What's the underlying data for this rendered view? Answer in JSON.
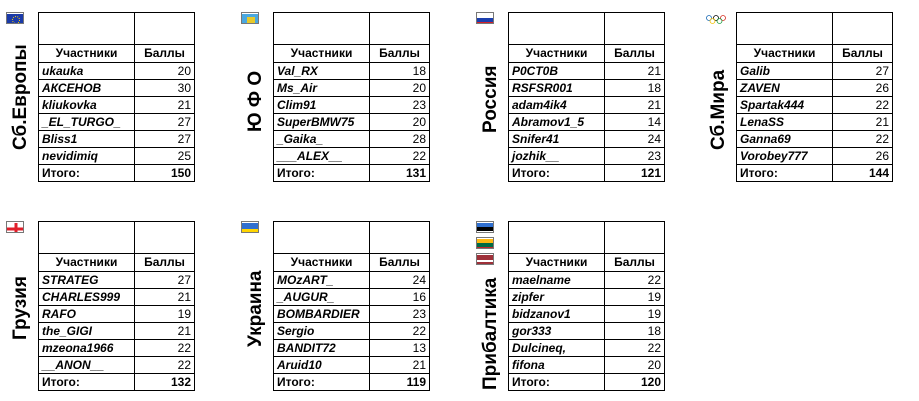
{
  "blocks": [
    {
      "label": "Сб.Европы",
      "flag": "eu-flag-icon",
      "head": {
        "name": "Участники",
        "score": "Баллы"
      },
      "rows": [
        {
          "name": "ukauka",
          "score": "20"
        },
        {
          "name": "АКСЕНОВ",
          "score": "30"
        },
        {
          "name": "kliukovka",
          "score": "21"
        },
        {
          "name": "_EL_TURGO_",
          "score": "27"
        },
        {
          "name": "Bliss1",
          "score": "27"
        },
        {
          "name": "nevidimiq",
          "score": "25"
        }
      ],
      "total": {
        "label": "Итого:",
        "score": "150"
      }
    },
    {
      "label": "Ю Ф О",
      "flag": "yufo-flag-icon",
      "head": {
        "name": "Участники",
        "score": "Баллы"
      },
      "rows": [
        {
          "name": "Val_RX",
          "score": "18"
        },
        {
          "name": "Ms_Air",
          "score": "20"
        },
        {
          "name": "Clim91",
          "score": "23"
        },
        {
          "name": "SuperBMW75",
          "score": "20"
        },
        {
          "name": "_Gaika_",
          "score": "28"
        },
        {
          "name": "___ALEX__",
          "score": "22"
        }
      ],
      "total": {
        "label": "Итого:",
        "score": "131"
      }
    },
    {
      "label": "Россия",
      "flag": "russia-flag-icon",
      "head": {
        "name": "Участники",
        "score": "Баллы"
      },
      "rows": [
        {
          "name": "P0CT0B",
          "score": "21"
        },
        {
          "name": "RSFSR001",
          "score": "18"
        },
        {
          "name": "adam4ik4",
          "score": "21"
        },
        {
          "name": "Abramov1_5",
          "score": "14"
        },
        {
          "name": "Snifer41",
          "score": "24"
        },
        {
          "name": "jozhik__",
          "score": "23"
        }
      ],
      "total": {
        "label": "Итого:",
        "score": "121"
      }
    },
    {
      "label": "Сб.Мира",
      "flag": "olympic-flag-icon",
      "head": {
        "name": "Участники",
        "score": "Баллы"
      },
      "rows": [
        {
          "name": "Galib",
          "score": "27"
        },
        {
          "name": "ZAVEN",
          "score": "26"
        },
        {
          "name": "Spartak444",
          "score": "22"
        },
        {
          "name": "LenaSS",
          "score": "21"
        },
        {
          "name": "Ganna69",
          "score": "22"
        },
        {
          "name": "Vorobey777",
          "score": "26"
        }
      ],
      "total": {
        "label": "Итого:",
        "score": "144"
      }
    },
    {
      "label": "Грузия",
      "flag": "georgia-flag-icon",
      "head": {
        "name": "Участники",
        "score": "Баллы"
      },
      "rows": [
        {
          "name": "STRATEG",
          "score": "27"
        },
        {
          "name": "CHARLES999",
          "score": "21"
        },
        {
          "name": "RAFO",
          "score": "19"
        },
        {
          "name": "the_GIGI",
          "score": "21"
        },
        {
          "name": "mzeona1966",
          "score": "22"
        },
        {
          "name": "__ANON__",
          "score": "22"
        }
      ],
      "total": {
        "label": "Итого:",
        "score": "132"
      }
    },
    {
      "label": "Украина",
      "flag": "ukraine-flag-icon",
      "head": {
        "name": "Участники",
        "score": "Баллы"
      },
      "rows": [
        {
          "name": "MOzART_",
          "score": "24"
        },
        {
          "name": "_AUGUR_",
          "score": "16"
        },
        {
          "name": "BOMBARDIER",
          "score": "23"
        },
        {
          "name": "Sergio",
          "score": "22"
        },
        {
          "name": "BANDIT72",
          "score": "13"
        },
        {
          "name": "Aruid10",
          "score": "21"
        }
      ],
      "total": {
        "label": "Итого:",
        "score": "119"
      }
    },
    {
      "label": "Прибалтика",
      "flag": "baltic-flags-icon",
      "head": {
        "name": "Участники",
        "score": "Баллы"
      },
      "rows": [
        {
          "name": "maelname",
          "score": "22"
        },
        {
          "name": "zipfer",
          "score": "19"
        },
        {
          "name": "bidzanov1",
          "score": "19"
        },
        {
          "name": "gor333",
          "score": "18"
        },
        {
          "name": "Dulcineq,",
          "score": "22"
        },
        {
          "name": "fifona",
          "score": "20"
        }
      ],
      "total": {
        "label": "Итого:",
        "score": "120"
      }
    }
  ]
}
